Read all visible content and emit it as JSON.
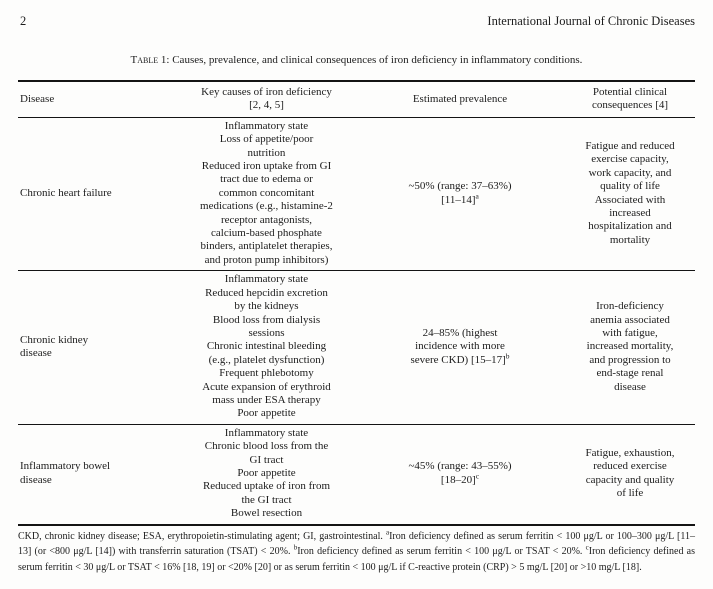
{
  "page": {
    "number": "2",
    "journal": "International Journal of Chronic Diseases"
  },
  "caption": {
    "label": "Table 1: ",
    "text": "Causes, prevalence, and clinical consequences of iron deficiency in inflammatory conditions."
  },
  "table": {
    "headers": {
      "disease": "Disease",
      "causes": "Key causes of iron deficiency\n[2, 4, 5]",
      "prevalence": "Estimated prevalence",
      "consequences": "Potential clinical\nconsequences [4]"
    },
    "rows": [
      {
        "disease": "Chronic heart failure",
        "causes": "Inflammatory state\nLoss of appetite/poor\nnutrition\nReduced iron uptake from GI\ntract due to edema or\ncommon concomitant\nmedications (e.g., histamine-2\nreceptor antagonists,\ncalcium-based phosphate\nbinders, antiplatelet therapies,\nand proton pump inhibitors)",
        "prevalence": "~50% (range: 37–63%)\n[11–14]",
        "prevalence_sup": "a",
        "consequences": "Fatigue and reduced\nexercise capacity,\nwork capacity, and\nquality of life\nAssociated with\nincreased\nhospitalization and\nmortality"
      },
      {
        "disease": "Chronic kidney\ndisease",
        "causes": "Inflammatory state\nReduced hepcidin excretion\nby the kidneys\nBlood loss from dialysis\nsessions\nChronic intestinal bleeding\n(e.g., platelet dysfunction)\nFrequent phlebotomy\nAcute expansion of erythroid\nmass under ESA therapy\nPoor appetite",
        "prevalence": "24–85% (highest\nincidence with more\nsevere CKD) [15–17]",
        "prevalence_sup": "b",
        "consequences": "Iron-deficiency\nanemia associated\nwith fatigue,\nincreased mortality,\nand progression to\nend-stage renal\ndisease"
      },
      {
        "disease": "Inflammatory bowel\ndisease",
        "causes": "Inflammatory state\nChronic blood loss from the\nGI tract\nPoor appetite\nReduced uptake of iron from\nthe GI tract\nBowel resection",
        "prevalence": "~45% (range: 43–55%)\n[18–20]",
        "prevalence_sup": "c",
        "consequences": "Fatigue, exhaustion,\nreduced exercise\ncapacity and quality\nof life"
      }
    ]
  },
  "footnote": {
    "intro": "CKD, chronic kidney disease; ESA, erythropoietin-stimulating agent; GI, gastrointestinal. ",
    "notes": [
      {
        "sup": "a",
        "text": "Iron deficiency defined as serum ferritin < 100 μg/L or 100–300 μg/L [11–13] (or <800 μg/L [14]) with transferrin saturation (TSAT) < 20%. "
      },
      {
        "sup": "b",
        "text": "Iron deficiency defined as serum ferritin < 100 μg/L or TSAT < 20%. "
      },
      {
        "sup": "c",
        "text": "Iron deficiency defined as serum ferritin < 30 μg/L or TSAT < 16% [18, 19] or <20% [20] or as serum ferritin < 100 μg/L if C-reactive protein (CRP) > 5 mg/L [20] or >10 mg/L [18]."
      }
    ]
  }
}
